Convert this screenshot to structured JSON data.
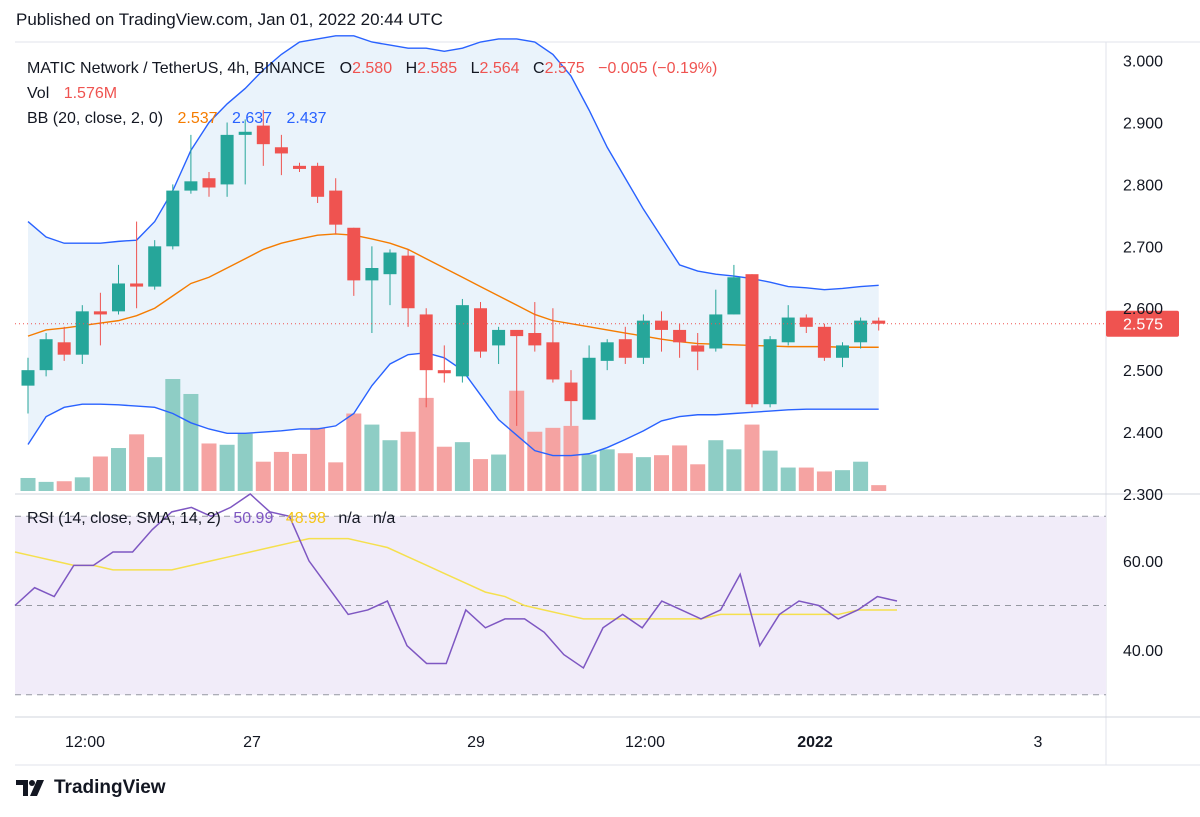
{
  "header": {
    "published": "Published on TradingView.com, Jan 01, 2022 20:44 UTC"
  },
  "legend": {
    "symbol": "MATIC Network / TetherUS, 4h, BINANCE",
    "o_label": "O",
    "o_value": "2.580",
    "h_label": "H",
    "h_value": "2.585",
    "l_label": "L",
    "l_value": "2.564",
    "c_label": "C",
    "c_value": "2.575",
    "change": "−0.005 (−0.19%)",
    "vol_label": "Vol",
    "vol_value": "1.576M",
    "bb_label": "BB (20, close, 2, 0)",
    "bb_basis": "2.537",
    "bb_upper": "2.637",
    "bb_lower": "2.437",
    "rsi_label": "RSI (14, close, SMA, 14, 2)",
    "rsi_value": "50.99",
    "rsi_ma": "48.98",
    "rsi_na1": "n/a",
    "rsi_na2": "n/a"
  },
  "price_label": "2.575",
  "footer": {
    "brand": "TradingView"
  },
  "colors": {
    "up": "#26a69a",
    "down": "#ef5350",
    "up_vol": "#8ecdc5",
    "down_vol": "#f5a3a2",
    "bb_band": "#2962ff",
    "bb_basis": "#f57c00",
    "bb_fill": "#eaf3fb",
    "rsi": "#7e57c2",
    "rsi_ma": "#f5e04e",
    "rsi_fill": "#f1ecf9"
  },
  "chart_data": {
    "type": "candlestick",
    "timeframe": "4h",
    "price_axis": {
      "ticks": [
        "3.000",
        "2.900",
        "2.800",
        "2.700",
        "2.600",
        "2.500",
        "2.400",
        "2.300"
      ],
      "range": [
        2.3,
        3.03
      ]
    },
    "rsi_axis": {
      "ticks": [
        "60.00",
        "40.00"
      ],
      "range": [
        25,
        75
      ],
      "bands": [
        70,
        30
      ],
      "midline": 50
    },
    "x_ticks": [
      "12:00",
      "27",
      "29",
      "12:00",
      "2022",
      "3"
    ],
    "candles": [
      {
        "o": 2.475,
        "h": 2.52,
        "l": 2.43,
        "c": 2.5,
        "v": 0.2
      },
      {
        "o": 2.5,
        "h": 2.56,
        "l": 2.49,
        "c": 2.55,
        "v": 0.14
      },
      {
        "o": 2.545,
        "h": 2.57,
        "l": 2.515,
        "c": 2.525,
        "v": 0.15
      },
      {
        "o": 2.525,
        "h": 2.605,
        "l": 2.51,
        "c": 2.595,
        "v": 0.21
      },
      {
        "o": 2.595,
        "h": 2.625,
        "l": 2.54,
        "c": 2.59,
        "v": 0.53
      },
      {
        "o": 2.595,
        "h": 2.67,
        "l": 2.59,
        "c": 2.64,
        "v": 0.66
      },
      {
        "o": 2.64,
        "h": 2.74,
        "l": 2.6,
        "c": 2.635,
        "v": 0.87
      },
      {
        "o": 2.635,
        "h": 2.71,
        "l": 2.63,
        "c": 2.7,
        "v": 0.52
      },
      {
        "o": 2.7,
        "h": 2.8,
        "l": 2.695,
        "c": 2.79,
        "v": 1.72
      },
      {
        "o": 2.79,
        "h": 2.88,
        "l": 2.785,
        "c": 2.805,
        "v": 1.49
      },
      {
        "o": 2.81,
        "h": 2.82,
        "l": 2.78,
        "c": 2.795,
        "v": 0.73
      },
      {
        "o": 2.8,
        "h": 2.9,
        "l": 2.78,
        "c": 2.88,
        "v": 0.71
      },
      {
        "o": 2.88,
        "h": 2.905,
        "l": 2.8,
        "c": 2.885,
        "v": 0.88
      },
      {
        "o": 2.895,
        "h": 2.92,
        "l": 2.83,
        "c": 2.865,
        "v": 0.45
      },
      {
        "o": 2.86,
        "h": 2.88,
        "l": 2.815,
        "c": 2.85,
        "v": 0.6
      },
      {
        "o": 2.83,
        "h": 2.835,
        "l": 2.82,
        "c": 2.825,
        "v": 0.57
      },
      {
        "o": 2.83,
        "h": 2.835,
        "l": 2.77,
        "c": 2.78,
        "v": 0.97
      },
      {
        "o": 2.79,
        "h": 2.81,
        "l": 2.72,
        "c": 2.735,
        "v": 0.44
      },
      {
        "o": 2.73,
        "h": 2.73,
        "l": 2.62,
        "c": 2.645,
        "v": 1.19
      },
      {
        "o": 2.645,
        "h": 2.7,
        "l": 2.56,
        "c": 2.665,
        "v": 1.02
      },
      {
        "o": 2.655,
        "h": 2.695,
        "l": 2.605,
        "c": 2.69,
        "v": 0.78
      },
      {
        "o": 2.685,
        "h": 2.695,
        "l": 2.57,
        "c": 2.6,
        "v": 0.91
      },
      {
        "o": 2.59,
        "h": 2.6,
        "l": 2.44,
        "c": 2.5,
        "v": 1.43
      },
      {
        "o": 2.5,
        "h": 2.54,
        "l": 2.48,
        "c": 2.495,
        "v": 0.68
      },
      {
        "o": 2.49,
        "h": 2.615,
        "l": 2.48,
        "c": 2.605,
        "v": 0.75
      },
      {
        "o": 2.6,
        "h": 2.61,
        "l": 2.52,
        "c": 2.53,
        "v": 0.49
      },
      {
        "o": 2.54,
        "h": 2.57,
        "l": 2.51,
        "c": 2.565,
        "v": 0.56
      },
      {
        "o": 2.565,
        "h": 2.56,
        "l": 2.41,
        "c": 2.555,
        "v": 1.54
      },
      {
        "o": 2.56,
        "h": 2.61,
        "l": 2.53,
        "c": 2.54,
        "v": 0.91
      },
      {
        "o": 2.545,
        "h": 2.6,
        "l": 2.48,
        "c": 2.485,
        "v": 0.97
      },
      {
        "o": 2.48,
        "h": 2.5,
        "l": 2.41,
        "c": 2.45,
        "v": 1.0
      },
      {
        "o": 2.42,
        "h": 2.54,
        "l": 2.42,
        "c": 2.52,
        "v": 0.56
      },
      {
        "o": 2.515,
        "h": 2.55,
        "l": 2.5,
        "c": 2.545,
        "v": 0.64
      },
      {
        "o": 2.55,
        "h": 2.57,
        "l": 2.51,
        "c": 2.52,
        "v": 0.58
      },
      {
        "o": 2.52,
        "h": 2.59,
        "l": 2.51,
        "c": 2.58,
        "v": 0.52
      },
      {
        "o": 2.58,
        "h": 2.595,
        "l": 2.53,
        "c": 2.565,
        "v": 0.55
      },
      {
        "o": 2.565,
        "h": 2.575,
        "l": 2.52,
        "c": 2.545,
        "v": 0.7
      },
      {
        "o": 2.54,
        "h": 2.56,
        "l": 2.5,
        "c": 2.53,
        "v": 0.41
      },
      {
        "o": 2.535,
        "h": 2.63,
        "l": 2.53,
        "c": 2.59,
        "v": 0.78
      },
      {
        "o": 2.59,
        "h": 2.67,
        "l": 2.59,
        "c": 2.65,
        "v": 0.64
      },
      {
        "o": 2.655,
        "h": 2.655,
        "l": 2.44,
        "c": 2.445,
        "v": 1.02
      },
      {
        "o": 2.445,
        "h": 2.555,
        "l": 2.44,
        "c": 2.55,
        "v": 0.62
      },
      {
        "o": 2.545,
        "h": 2.605,
        "l": 2.54,
        "c": 2.585,
        "v": 0.36
      },
      {
        "o": 2.585,
        "h": 2.59,
        "l": 2.56,
        "c": 2.57,
        "v": 0.36
      },
      {
        "o": 2.57,
        "h": 2.575,
        "l": 2.515,
        "c": 2.52,
        "v": 0.3
      },
      {
        "o": 2.52,
        "h": 2.545,
        "l": 2.505,
        "c": 2.54,
        "v": 0.32
      },
      {
        "o": 2.545,
        "h": 2.585,
        "l": 2.535,
        "c": 2.58,
        "v": 0.45
      },
      {
        "o": 2.58,
        "h": 2.585,
        "l": 2.564,
        "c": 2.575,
        "v": 0.09
      }
    ],
    "bb_upper": [
      2.74,
      2.715,
      2.705,
      2.705,
      2.705,
      2.708,
      2.71,
      2.74,
      2.79,
      2.855,
      2.9,
      2.93,
      2.955,
      2.985,
      3.01,
      3.03,
      3.035,
      3.04,
      3.04,
      3.03,
      3.025,
      3.02,
      3.02,
      3.015,
      3.02,
      3.03,
      3.035,
      3.035,
      3.03,
      3.01,
      2.975,
      2.92,
      2.86,
      2.81,
      2.76,
      2.715,
      2.67,
      2.66,
      2.655,
      2.652,
      2.648,
      2.642,
      2.635,
      2.633,
      2.63,
      2.632,
      2.635,
      2.637
    ],
    "bb_basis": [
      2.555,
      2.565,
      2.568,
      2.572,
      2.576,
      2.58,
      2.588,
      2.6,
      2.62,
      2.64,
      2.65,
      2.665,
      2.68,
      2.695,
      2.705,
      2.712,
      2.718,
      2.72,
      2.718,
      2.712,
      2.705,
      2.695,
      2.68,
      2.665,
      2.65,
      2.635,
      2.62,
      2.605,
      2.59,
      2.58,
      2.575,
      2.57,
      2.565,
      2.56,
      2.555,
      2.55,
      2.546,
      2.543,
      2.542,
      2.541,
      2.54,
      2.539,
      2.538,
      2.538,
      2.538,
      2.537,
      2.537,
      2.537
    ],
    "bb_lower": [
      2.38,
      2.425,
      2.44,
      2.445,
      2.445,
      2.444,
      2.442,
      2.44,
      2.43,
      2.415,
      2.405,
      2.398,
      2.398,
      2.4,
      2.402,
      2.405,
      2.405,
      2.41,
      2.43,
      2.475,
      2.51,
      2.525,
      2.528,
      2.52,
      2.5,
      2.46,
      2.42,
      2.395,
      2.37,
      2.362,
      2.362,
      2.365,
      2.375,
      2.388,
      2.402,
      2.418,
      2.425,
      2.428,
      2.428,
      2.43,
      2.432,
      2.434,
      2.436,
      2.437,
      2.437,
      2.437,
      2.437,
      2.437
    ],
    "rsi": [
      50,
      54,
      52,
      59,
      59,
      62,
      62,
      67,
      71,
      72,
      70,
      72,
      75,
      71,
      70,
      60,
      54,
      48,
      49,
      51,
      41,
      37,
      37,
      49,
      45,
      47,
      47,
      44,
      39,
      36,
      45,
      48,
      45,
      51,
      49,
      47,
      49,
      57,
      41,
      48,
      51,
      50,
      47,
      49,
      52,
      51
    ],
    "rsi_ma": [
      62,
      61,
      60,
      59,
      59,
      58,
      58,
      58,
      58,
      59,
      60,
      61,
      62,
      63,
      64,
      65,
      65,
      65,
      64,
      63,
      61,
      59,
      57,
      55,
      53,
      52,
      50,
      49,
      48,
      47,
      47,
      47,
      47,
      47,
      47,
      47,
      48,
      48,
      48,
      48,
      48,
      48,
      48,
      49,
      49,
      49
    ]
  }
}
